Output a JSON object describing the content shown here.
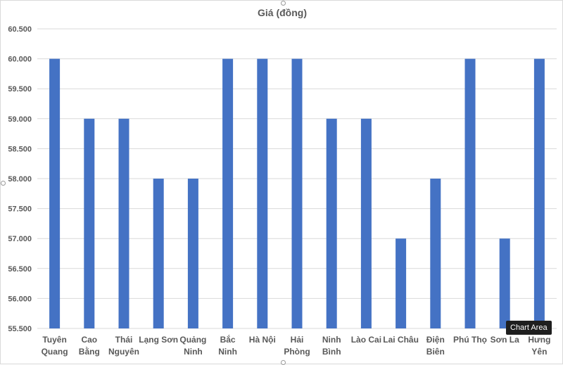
{
  "chart_data": {
    "type": "bar",
    "title": "Giá (đồng)",
    "categories": [
      [
        "Tuyên",
        "Quang"
      ],
      [
        "Cao",
        "Bằng"
      ],
      [
        "Thái",
        "Nguyên"
      ],
      [
        "Lạng Sơn"
      ],
      [
        "Quảng",
        "Ninh"
      ],
      [
        "Bắc",
        "Ninh"
      ],
      [
        "Hà Nội"
      ],
      [
        "Hải",
        "Phòng"
      ],
      [
        "Ninh",
        "Bình"
      ],
      [
        "Lào Cai"
      ],
      [
        "Lai Châu"
      ],
      [
        "Điện",
        "Biên"
      ],
      [
        "Phú Thọ"
      ],
      [
        "Sơn La"
      ],
      [
        "Hưng",
        "Yên"
      ]
    ],
    "series": [
      {
        "values": [
          60000,
          59000,
          59000,
          58000,
          58000,
          60000,
          60000,
          60000,
          59000,
          59000,
          57000,
          58000,
          60000,
          57000,
          60000
        ],
        "color": "#4472c4"
      }
    ],
    "ylim": [
      55500,
      60500
    ],
    "yticks": [
      "55.500",
      "56.000",
      "56.500",
      "57.000",
      "57.500",
      "58.000",
      "58.500",
      "59.000",
      "59.500",
      "60.000",
      "60.500"
    ],
    "grid": true,
    "legend": "none"
  },
  "tooltip": {
    "label": "Chart Area"
  }
}
